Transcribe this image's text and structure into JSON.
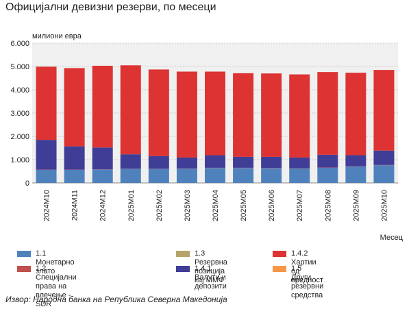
{
  "title": "Официјални девизни резерви, по месеци",
  "source": "Извор: Народна банка на Република Северна Македонија",
  "chart_data": {
    "type": "bar",
    "stacked": true,
    "ylabel": "милиони евра",
    "xlabel": "Месец",
    "ylim": [
      0,
      6000
    ],
    "yticks": [
      "0",
      "1.000",
      "2.000",
      "3.000",
      "4.000",
      "5.000",
      "6.000"
    ],
    "grid": true,
    "legend_position": "bottom",
    "categories": [
      "2024M10",
      "2024M11",
      "2024M12",
      "2025M01",
      "2025M02",
      "2025M03",
      "2025M04",
      "2025M05",
      "2025M06",
      "2025M07",
      "2025M08",
      "2025M09",
      "2025M10"
    ],
    "series": [
      {
        "name": "1.1 Монетарно злато",
        "color": "#4f81bd",
        "values": [
          560,
          560,
          570,
          600,
          600,
          610,
          640,
          640,
          630,
          620,
          650,
          700,
          760
        ]
      },
      {
        "name": "1.2 Специјални права на влечење - SDR",
        "color": "#c0504d",
        "values": [
          10,
          10,
          10,
          10,
          10,
          10,
          10,
          10,
          10,
          10,
          10,
          10,
          10
        ]
      },
      {
        "name": "1.3 Резервна позиција кај ММФ",
        "color": "#b5a36b",
        "values": [
          0,
          0,
          0,
          0,
          0,
          0,
          0,
          0,
          0,
          0,
          0,
          0,
          0
        ]
      },
      {
        "name": "1.4.1 Валути и депозити",
        "color": "#3f3d96",
        "values": [
          1280,
          1000,
          940,
          620,
          540,
          470,
          540,
          470,
          480,
          460,
          550,
          480,
          620
        ]
      },
      {
        "name": "1.4.2 Хартии од вредност",
        "color": "#dd3333",
        "values": [
          3140,
          3360,
          3510,
          3820,
          3720,
          3690,
          3590,
          3590,
          3580,
          3570,
          3550,
          3540,
          3460
        ]
      },
      {
        "name": "1.5 Други резервни средства",
        "color": "#f79646",
        "values": [
          0,
          0,
          0,
          0,
          0,
          0,
          0,
          0,
          0,
          0,
          0,
          0,
          0
        ]
      }
    ]
  }
}
